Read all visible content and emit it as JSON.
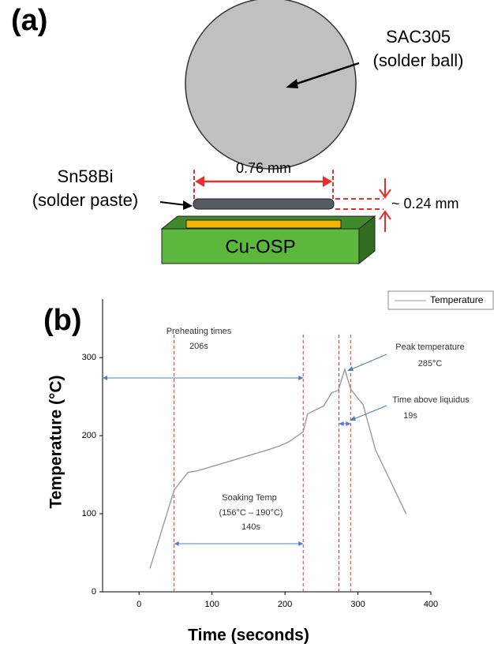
{
  "diagram": {
    "panel_label": "(a)",
    "ball_label": [
      "SAC305",
      "(solder ball)"
    ],
    "paste_label": [
      "Sn58Bi",
      "(solder paste)"
    ],
    "width_label": "0.76 mm",
    "height_label": "~ 0.24 mm",
    "substrate_label": "Cu-OSP"
  },
  "chart_data": {
    "type": "line",
    "panel_label": "(b)",
    "x_label": "Time (seconds)",
    "y_label": "Temperature (°C)",
    "x": [
      15,
      48,
      56,
      67,
      80,
      134,
      177,
      193,
      205,
      225,
      231,
      253,
      264,
      273,
      282,
      290,
      298,
      307,
      324,
      366
    ],
    "series": [
      {
        "name": "Temperature",
        "color": "#9a9a9a",
        "values": [
          30,
          130,
          140,
          153,
          155,
          170,
          182,
          187,
          192,
          205,
          228,
          238,
          255,
          258,
          285,
          260,
          250,
          240,
          182,
          100
        ]
      }
    ],
    "xlim": [
      -50,
      400
    ],
    "xticks": [
      0,
      100,
      200,
      300,
      400
    ],
    "ylim": [
      0,
      375
    ],
    "yticks": [
      0,
      100,
      200,
      300
    ],
    "vlines": [
      48,
      225,
      274,
      290
    ],
    "vline_color": "#e8302a",
    "annotations": [
      [
        "Preheating times",
        "206s"
      ],
      [
        "Soaking Temp",
        "(156°C – 190°C)",
        "140s"
      ],
      [
        "Peak temperature",
        "285°C"
      ],
      [
        "Time above liquidus",
        "19s"
      ]
    ],
    "legend": "top-right"
  }
}
